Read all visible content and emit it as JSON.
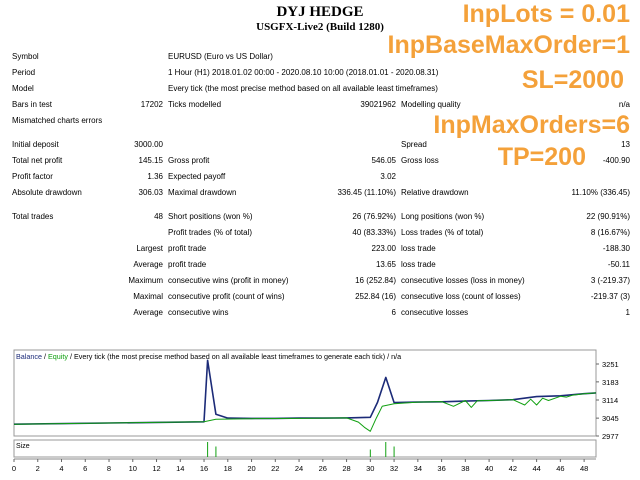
{
  "header": {
    "title": "DYJ HEDGE",
    "subtitle": "USGFX-Live2 (Build 1280)"
  },
  "overlay": [
    "InpLots = 0.01",
    "InpBaseMaxOrder=1",
    "SL=2000",
    "InpMaxOrders=6",
    "TP=200"
  ],
  "info": {
    "symbol_label": "Symbol",
    "symbol_value": "EURUSD (Euro vs US Dollar)",
    "period_label": "Period",
    "period_value": "1 Hour (H1) 2018.01.02 00:00 - 2020.08.10 10:00 (2018.01.01 - 2020.08.31)",
    "model_label": "Model",
    "model_value": "Every tick (the most precise method based on all available least timeframes)",
    "bars_label": "Bars in test",
    "bars_value": "17202",
    "ticks_label": "Ticks modelled",
    "ticks_value": "39021962",
    "quality_label": "Modelling quality",
    "quality_value": "n/a",
    "mismatch_label": "Mismatched charts errors"
  },
  "stats": {
    "initial_deposit_label": "Initial deposit",
    "initial_deposit": "3000.00",
    "spread_label": "Spread",
    "spread": "13",
    "net_profit_label": "Total net profit",
    "net_profit": "145.15",
    "gross_profit_label": "Gross profit",
    "gross_profit": "546.05",
    "gross_loss_label": "Gross loss",
    "gross_loss": "-400.90",
    "profit_factor_label": "Profit factor",
    "profit_factor": "1.36",
    "expected_payoff_label": "Expected payoff",
    "expected_payoff": "3.02",
    "abs_dd_label": "Absolute drawdown",
    "abs_dd": "306.03",
    "max_dd_label": "Maximal drawdown",
    "max_dd": "336.45 (11.10%)",
    "rel_dd_label": "Relative drawdown",
    "rel_dd": "11.10% (336.45)"
  },
  "trades": {
    "total_label": "Total trades",
    "total": "48",
    "short_label": "Short positions (won %)",
    "short": "26 (76.92%)",
    "long_label": "Long positions (won %)",
    "long": "22 (90.91%)",
    "profit_trades_label": "Profit trades (% of total)",
    "profit_trades": "40 (83.33%)",
    "loss_trades_label": "Loss trades (% of total)",
    "loss_trades": "8 (16.67%)",
    "largest_label": "Largest",
    "largest_profit_label": "profit trade",
    "largest_profit": "223.00",
    "largest_loss_label": "loss trade",
    "largest_loss": "-188.30",
    "average_label": "Average",
    "average_profit_label": "profit trade",
    "average_profit": "13.65",
    "average_loss_label": "loss trade",
    "average_loss": "-50.11",
    "maximum_label": "Maximum",
    "max_cons_wins_label": "consecutive wins (profit in money)",
    "max_cons_wins": "16 (252.84)",
    "max_cons_losses_label": "consecutive losses (loss in money)",
    "max_cons_losses": "3 (-219.37)",
    "maximal_label": "Maximal",
    "maximal_cons_profit_label": "consecutive profit (count of wins)",
    "maximal_cons_profit": "252.84 (16)",
    "maximal_cons_loss_label": "consecutive loss (count of losses)",
    "maximal_cons_loss": "-219.37 (3)",
    "avg2_label": "Average",
    "avg_cons_wins_label": "consecutive wins",
    "avg_cons_wins": "6",
    "avg_cons_losses_label": "consecutive losses",
    "avg_cons_losses": "1"
  },
  "chart_data": {
    "type": "line",
    "legend_parts": [
      "Balance",
      " / ",
      "Equity",
      " / Every tick (the most precise method based on all available least timeframes to generate each tick)",
      " / n/a"
    ],
    "x_ticks": [
      "0",
      "2",
      "4",
      "6",
      "8",
      "10",
      "12",
      "14",
      "16",
      "18",
      "20",
      "22",
      "24",
      "26",
      "28",
      "30",
      "32",
      "34",
      "36",
      "38",
      "40",
      "42",
      "44",
      "46",
      "48"
    ],
    "y_ticks": [
      "3251",
      "3183",
      "3114",
      "3045",
      "2977"
    ],
    "ylim": [
      2977,
      3251
    ],
    "xlim": [
      0,
      49
    ],
    "series": [
      {
        "name": "Balance",
        "color": "#1c2b78",
        "x": [
          0,
          16,
          16.3,
          17,
          18,
          20,
          22,
          24,
          26,
          28,
          30,
          30.6,
          31.3,
          32,
          34,
          36,
          38,
          40,
          42,
          44,
          46,
          48,
          49
        ],
        "y": [
          3022,
          3031,
          3265,
          3060,
          3045,
          3044,
          3044,
          3045,
          3045,
          3046,
          3048,
          3105,
          3200,
          3104,
          3106,
          3107,
          3110,
          3112,
          3115,
          3127,
          3130,
          3138,
          3141
        ]
      },
      {
        "name": "Equity",
        "color": "#11a011",
        "x": [
          0,
          16,
          17,
          20,
          24,
          28,
          29,
          29.5,
          30,
          30.5,
          31,
          32,
          34,
          36,
          37,
          38,
          38.5,
          39,
          40,
          42,
          43,
          43.5,
          44,
          44.5,
          45,
          46,
          46.5,
          47,
          48,
          49
        ],
        "y": [
          3022,
          3031,
          3041,
          3043,
          3044,
          3046,
          3030,
          3010,
          2995,
          3045,
          3090,
          3100,
          3106,
          3108,
          3090,
          3112,
          3086,
          3111,
          3112,
          3115,
          3095,
          3117,
          3095,
          3121,
          3112,
          3128,
          3125,
          3132,
          3138,
          3141
        ]
      }
    ],
    "size_bars": [
      {
        "x": 16.3,
        "h": 1
      },
      {
        "x": 17,
        "h": 0.7
      },
      {
        "x": 30,
        "h": 0.5
      },
      {
        "x": 31.3,
        "h": 1
      },
      {
        "x": 32,
        "h": 0.7
      }
    ],
    "size_label": "Size",
    "size_color": "#11a011"
  }
}
